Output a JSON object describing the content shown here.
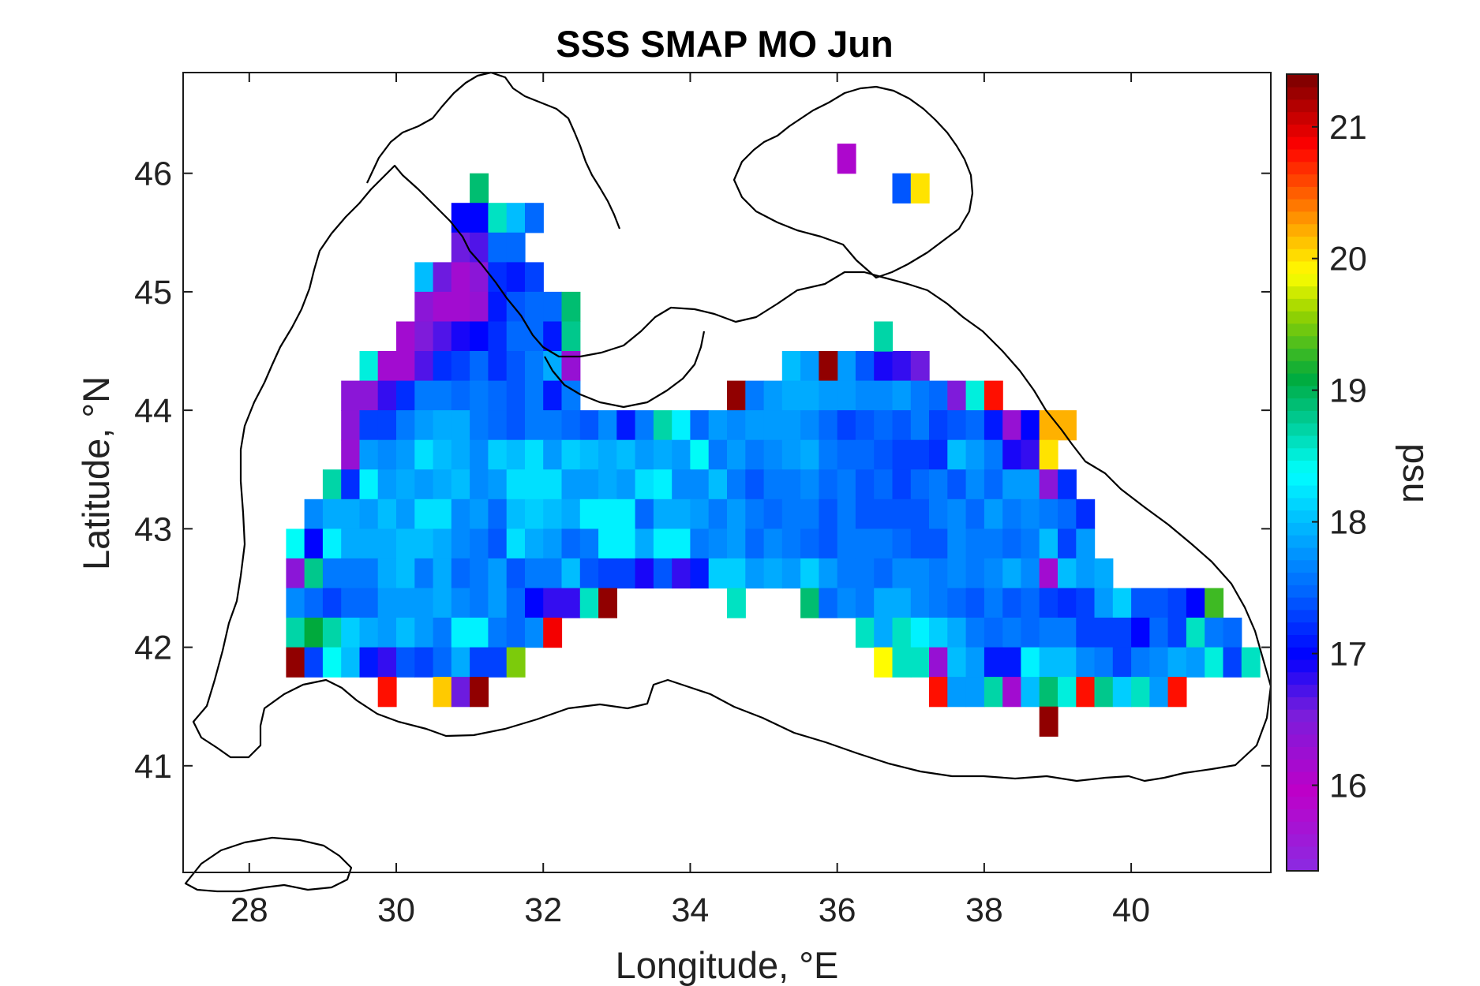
{
  "chart_data": {
    "type": "heatmap",
    "title": "SSS SMAP MO Jun",
    "xlabel": "Longitude, °E",
    "ylabel": "Latitude, °N",
    "colorbar_label": "psu",
    "xlim": [
      27.1,
      41.9
    ],
    "ylim": [
      40.1,
      46.85
    ],
    "xticks": [
      28,
      30,
      32,
      34,
      36,
      38,
      40
    ],
    "yticks": [
      41,
      42,
      43,
      44,
      45,
      46
    ],
    "clim": [
      15.35,
      21.4
    ],
    "cticks": [
      16,
      17,
      18,
      19,
      20,
      21
    ],
    "cell_size_deg": [
      0.25,
      0.25
    ],
    "colormap": "jet-like (violet–blue–cyan–green–yellow–red–dark red)",
    "legend": "colorbar right",
    "rows": [
      {
        "lat": 45.875,
        "lon0": 31.125,
        "values": [
          18.9
        ]
      },
      {
        "lat": 45.625,
        "lon0": 30.875,
        "values": [
          17.0,
          17.0,
          18.6,
          18.0,
          17.5
        ]
      },
      {
        "lat": 45.375,
        "lon0": 30.875,
        "values": [
          16.6,
          16.7,
          17.5,
          17.5
        ]
      },
      {
        "lat": 45.125,
        "lon0": 30.375,
        "values": [
          18.0,
          16.6,
          16.2,
          16.4,
          17.2,
          17.1,
          17.3
        ]
      },
      {
        "lat": 44.875,
        "lon0": 30.375,
        "values": [
          16.4,
          16.2,
          16.2,
          16.3,
          17.1,
          17.4,
          17.5,
          17.5,
          18.9
        ]
      },
      {
        "lat": 44.625,
        "lon0": 30.125,
        "values": [
          16.2,
          16.5,
          16.7,
          16.9,
          17.0,
          17.2,
          17.5,
          17.5,
          17.1,
          18.8
        ]
      },
      {
        "lat": 44.375,
        "lon0": 29.625,
        "values": [
          18.5,
          16.2,
          16.2,
          16.7,
          17.2,
          17.3,
          17.5,
          17.2,
          17.4,
          17.6,
          17.9,
          16.3
        ]
      },
      {
        "lat": 44.375,
        "lon0": 35.375,
        "values": [
          18.0,
          17.8,
          17.0,
          17.8,
          17.4,
          16.9,
          16.8,
          16.6
        ]
      },
      {
        "lat": 44.375,
        "lon0": 35.875,
        "values": [
          21.3
        ]
      },
      {
        "lat": 44.625,
        "lon0": 36.625,
        "values": [
          18.7
        ]
      },
      {
        "lat": 44.125,
        "lon0": 29.375,
        "values": [
          16.4,
          16.4,
          16.8,
          17.2,
          17.6,
          17.6,
          17.5,
          17.6,
          17.5,
          17.4,
          17.6,
          17.1,
          17.6
        ]
      },
      {
        "lat": 44.125,
        "lon0": 34.625,
        "values": [
          21.3,
          17.6,
          17.8,
          17.9,
          17.9,
          17.8,
          17.8,
          17.7,
          17.7,
          17.8,
          17.6,
          17.5,
          16.5,
          18.5,
          20.8
        ]
      },
      {
        "lat": 43.875,
        "lon0": 29.375,
        "values": [
          16.4,
          17.3,
          17.3,
          17.6,
          17.8,
          17.9,
          17.9,
          17.6,
          17.5,
          17.4,
          17.6,
          17.6,
          17.5,
          17.4,
          17.7,
          17.1,
          17.6,
          18.7,
          18.3,
          17.5,
          17.8,
          17.7,
          17.8,
          17.8,
          17.8,
          17.7,
          17.5,
          17.3,
          17.4,
          17.5,
          17.4,
          17.6,
          17.3,
          17.4,
          17.5,
          17.1,
          16.3,
          17.0,
          20.2,
          20.2
        ]
      },
      {
        "lat": 43.625,
        "lon0": 29.375,
        "values": [
          16.3,
          17.8,
          17.7,
          17.8,
          18.2,
          18.0,
          17.9,
          17.7,
          18.1,
          18.0,
          18.2,
          17.8,
          18.1,
          18.0,
          17.9,
          18.0,
          17.8,
          17.9,
          17.8,
          18.4,
          17.6,
          17.8,
          17.6,
          17.7,
          17.8,
          17.9,
          17.6,
          17.5,
          17.5,
          17.4,
          17.3,
          17.3,
          17.2,
          18.0,
          17.8,
          17.6,
          16.9,
          16.8,
          20.0
        ]
      },
      {
        "lat": 43.375,
        "lon0": 29.125,
        "values": [
          18.7,
          17.2,
          18.3,
          17.8,
          17.9,
          17.8,
          17.9,
          18.0,
          17.7,
          17.8,
          18.2,
          18.2,
          18.2,
          17.8,
          17.8,
          17.9,
          17.8,
          18.2,
          18.3,
          17.7,
          17.7,
          18.0,
          17.6,
          17.4,
          17.6,
          17.6,
          17.7,
          17.5,
          17.6,
          17.4,
          17.5,
          17.3,
          17.5,
          17.6,
          17.4,
          17.7,
          17.5,
          17.8,
          17.8,
          16.4,
          17.2
        ]
      },
      {
        "lat": 43.125,
        "lon0": 28.875,
        "values": [
          17.7,
          17.9,
          17.9,
          17.8,
          18.0,
          17.8,
          18.2,
          18.2,
          17.7,
          17.8,
          17.5,
          18.0,
          18.1,
          18.0,
          17.9,
          18.3,
          18.3,
          18.3,
          17.5,
          17.9,
          17.9,
          17.8,
          17.6,
          17.8,
          17.6,
          17.5,
          17.6,
          17.6,
          17.4,
          17.6,
          17.4,
          17.4,
          17.4,
          17.4,
          17.6,
          17.7,
          17.5,
          17.8,
          17.6,
          17.7,
          17.6,
          17.5,
          17.2
        ]
      },
      {
        "lat": 42.875,
        "lon0": 28.625,
        "values": [
          18.4,
          17.0,
          18.3,
          17.9,
          17.9,
          17.9,
          18.0,
          18.0,
          17.9,
          17.7,
          17.6,
          17.4,
          18.2,
          17.9,
          17.8,
          17.5,
          17.6,
          18.3,
          18.3,
          17.9,
          18.3,
          18.3,
          17.6,
          17.7,
          17.8,
          17.5,
          17.7,
          17.6,
          17.5,
          17.4,
          17.6,
          17.6,
          17.6,
          17.5,
          17.4,
          17.4,
          17.7,
          17.6,
          17.6,
          17.5,
          17.6,
          18.0,
          17.3,
          17.8
        ]
      },
      {
        "lat": 42.625,
        "lon0": 28.625,
        "values": [
          16.4,
          18.8,
          17.6,
          17.6,
          17.6,
          17.9,
          18.0,
          17.6,
          17.9,
          17.5,
          17.6,
          17.8,
          17.4,
          17.6,
          17.6,
          18.0,
          17.4,
          17.3,
          17.3,
          16.9,
          17.4,
          16.8,
          17.1,
          18.1,
          18.1,
          17.8,
          17.9,
          17.8,
          18.1,
          17.8,
          17.6,
          17.6,
          17.5,
          17.7,
          17.7,
          17.6,
          17.7,
          17.6,
          17.7,
          17.9,
          17.7,
          16.2,
          18.0,
          17.8,
          17.9
        ]
      },
      {
        "lat": 42.375,
        "lon0": 28.625,
        "values": [
          17.7,
          17.5,
          17.3,
          17.5,
          17.5,
          17.8,
          17.8,
          17.8,
          17.9,
          17.7,
          17.6,
          17.8,
          17.5,
          17.0,
          16.8,
          16.8,
          18.6,
          21.3
        ]
      },
      {
        "lat": 42.375,
        "lon0": 34.625,
        "values": [
          18.6
        ]
      },
      {
        "lat": 42.375,
        "lon0": 35.625,
        "values": [
          18.9,
          17.5,
          17.7,
          17.6,
          17.9,
          17.9,
          17.7,
          17.6,
          17.5,
          17.4,
          17.6,
          17.4,
          17.5,
          17.3,
          17.2,
          17.3,
          17.8,
          18.1,
          17.4,
          17.4,
          17.3,
          17.0,
          19.3
        ]
      },
      {
        "lat": 42.125,
        "lon0": 28.625,
        "values": [
          18.7,
          19.1,
          18.7,
          18.1,
          17.9,
          17.8,
          18.0,
          17.8,
          17.6,
          18.3,
          18.3,
          17.6,
          17.5,
          17.7,
          20.9
        ]
      },
      {
        "lat": 42.125,
        "lon0": 36.375,
        "values": [
          18.6,
          17.9,
          18.6,
          18.3,
          18.1,
          17.9,
          17.6,
          17.5,
          17.6,
          17.5,
          17.6,
          17.6,
          17.3,
          17.3,
          17.3,
          17.0,
          17.5,
          17.3,
          18.6,
          17.6,
          17.5
        ]
      },
      {
        "lat": 41.875,
        "lon0": 28.625,
        "values": [
          21.3,
          17.3,
          18.4,
          18.0,
          17.1,
          16.8,
          17.4,
          17.3,
          17.5,
          17.9,
          17.3,
          17.3,
          19.5
        ]
      },
      {
        "lat": 41.875,
        "lon0": 36.625,
        "values": [
          19.9,
          18.6,
          18.6,
          16.3,
          18.0,
          17.8,
          17.1,
          17.1,
          18.3,
          18.0,
          18.0,
          17.7,
          17.6,
          17.3,
          17.6,
          17.7,
          17.9,
          17.8,
          18.5,
          17.3,
          18.6
        ]
      },
      {
        "lat": 41.625,
        "lon0": 29.875,
        "values": [
          20.8
        ]
      },
      {
        "lat": 41.625,
        "lon0": 30.625,
        "values": [
          20.1,
          16.6,
          21.3
        ]
      },
      {
        "lat": 41.625,
        "lon0": 37.375,
        "values": [
          20.8,
          17.8,
          17.8,
          18.7,
          16.2,
          18.0,
          18.9,
          18.5,
          20.8,
          18.8,
          18.1,
          18.6,
          17.8,
          20.8
        ]
      },
      {
        "lat": 41.375,
        "lon0": 38.875,
        "values": [
          21.3
        ]
      },
      {
        "lat": 46.125,
        "lon0": 36.125,
        "values": [
          16.1
        ]
      },
      {
        "lat": 45.875,
        "lon0": 36.875,
        "values": [
          17.4,
          20.0
        ]
      }
    ]
  }
}
